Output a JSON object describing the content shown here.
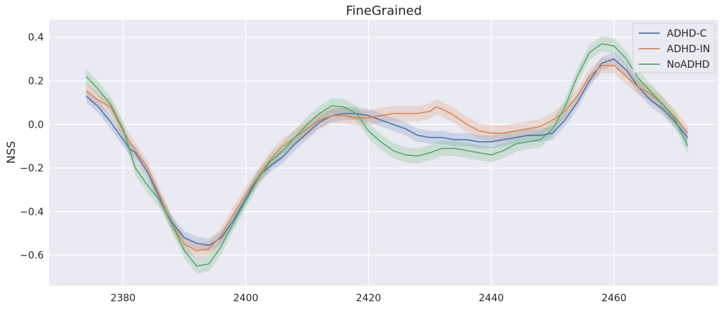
{
  "chart_data": {
    "type": "line",
    "title": "FineGrained",
    "xlabel": "",
    "ylabel": "NSS",
    "xlim": [
      2368,
      2477
    ],
    "ylim": [
      -0.74,
      0.48
    ],
    "xticks": [
      2380,
      2400,
      2420,
      2440,
      2460
    ],
    "xtick_labels": [
      "2380",
      "2400",
      "2420",
      "2440",
      "2460"
    ],
    "yticks": [
      -0.6,
      -0.4,
      -0.2,
      0.0,
      0.2,
      0.4
    ],
    "ytick_labels": [
      "−0.6",
      "−0.4",
      "−0.2",
      "0.0",
      "0.2",
      "0.4"
    ],
    "grid": true,
    "legend_position": "top-right",
    "series": [
      {
        "name": "ADHD-C",
        "color": "#4c72b0",
        "band": 0.03,
        "x": [
          2374,
          2376,
          2378,
          2380,
          2381,
          2382,
          2384,
          2386,
          2388,
          2390,
          2392,
          2394,
          2396,
          2398,
          2400,
          2402,
          2404,
          2406,
          2408,
          2410,
          2412,
          2414,
          2416,
          2418,
          2420,
          2422,
          2424,
          2426,
          2428,
          2430,
          2432,
          2434,
          2436,
          2438,
          2440,
          2442,
          2444,
          2446,
          2448,
          2450,
          2452,
          2454,
          2456,
          2458,
          2460,
          2462,
          2464,
          2466,
          2468,
          2470,
          2472
        ],
        "y": [
          0.13,
          0.08,
          0.01,
          -0.07,
          -0.11,
          -0.13,
          -0.22,
          -0.34,
          -0.45,
          -0.52,
          -0.545,
          -0.555,
          -0.52,
          -0.44,
          -0.34,
          -0.24,
          -0.19,
          -0.15,
          -0.09,
          -0.04,
          0.01,
          0.04,
          0.05,
          0.05,
          0.04,
          0.02,
          0.0,
          -0.02,
          -0.05,
          -0.06,
          -0.06,
          -0.07,
          -0.07,
          -0.08,
          -0.08,
          -0.07,
          -0.06,
          -0.05,
          -0.05,
          -0.04,
          0.02,
          0.1,
          0.2,
          0.28,
          0.3,
          0.25,
          0.17,
          0.11,
          0.07,
          0.01,
          -0.06
        ]
      },
      {
        "name": "ADHD-IN",
        "color": "#dd8452",
        "band": 0.035,
        "x": [
          2374,
          2376,
          2378,
          2380,
          2382,
          2384,
          2386,
          2388,
          2390,
          2392,
          2394,
          2396,
          2398,
          2400,
          2402,
          2404,
          2406,
          2408,
          2410,
          2412,
          2414,
          2416,
          2418,
          2420,
          2422,
          2424,
          2426,
          2428,
          2430,
          2431,
          2432,
          2434,
          2436,
          2438,
          2440,
          2442,
          2444,
          2446,
          2448,
          2450,
          2452,
          2454,
          2456,
          2458,
          2460,
          2462,
          2464,
          2466,
          2468,
          2470,
          2472
        ],
        "y": [
          0.155,
          0.11,
          0.08,
          -0.03,
          -0.12,
          -0.2,
          -0.33,
          -0.46,
          -0.55,
          -0.58,
          -0.57,
          -0.51,
          -0.41,
          -0.32,
          -0.24,
          -0.16,
          -0.1,
          -0.06,
          -0.02,
          0.02,
          0.04,
          0.04,
          0.03,
          0.03,
          0.04,
          0.05,
          0.05,
          0.05,
          0.06,
          0.08,
          0.07,
          0.04,
          0.0,
          -0.03,
          -0.04,
          -0.04,
          -0.03,
          -0.02,
          -0.01,
          0.02,
          0.06,
          0.13,
          0.22,
          0.27,
          0.27,
          0.22,
          0.17,
          0.14,
          0.09,
          0.03,
          -0.04
        ]
      },
      {
        "name": "NoADHD",
        "color": "#55a868",
        "band": 0.035,
        "x": [
          2374,
          2376,
          2378,
          2380,
          2382,
          2384,
          2386,
          2388,
          2390,
          2392,
          2394,
          2396,
          2398,
          2400,
          2402,
          2404,
          2406,
          2408,
          2410,
          2412,
          2414,
          2416,
          2418,
          2420,
          2422,
          2424,
          2426,
          2428,
          2430,
          2432,
          2434,
          2436,
          2438,
          2440,
          2442,
          2444,
          2446,
          2448,
          2450,
          2452,
          2454,
          2456,
          2458,
          2460,
          2462,
          2464,
          2466,
          2468,
          2470,
          2472
        ],
        "y": [
          0.22,
          0.16,
          0.09,
          -0.02,
          -0.2,
          -0.28,
          -0.35,
          -0.46,
          -0.58,
          -0.65,
          -0.64,
          -0.56,
          -0.45,
          -0.35,
          -0.25,
          -0.17,
          -0.12,
          -0.06,
          0.0,
          0.05,
          0.085,
          0.08,
          0.05,
          -0.03,
          -0.08,
          -0.12,
          -0.14,
          -0.145,
          -0.13,
          -0.11,
          -0.11,
          -0.12,
          -0.13,
          -0.14,
          -0.12,
          -0.09,
          -0.08,
          -0.07,
          -0.02,
          0.08,
          0.22,
          0.33,
          0.37,
          0.36,
          0.3,
          0.21,
          0.15,
          0.09,
          0.02,
          -0.1
        ]
      }
    ]
  }
}
